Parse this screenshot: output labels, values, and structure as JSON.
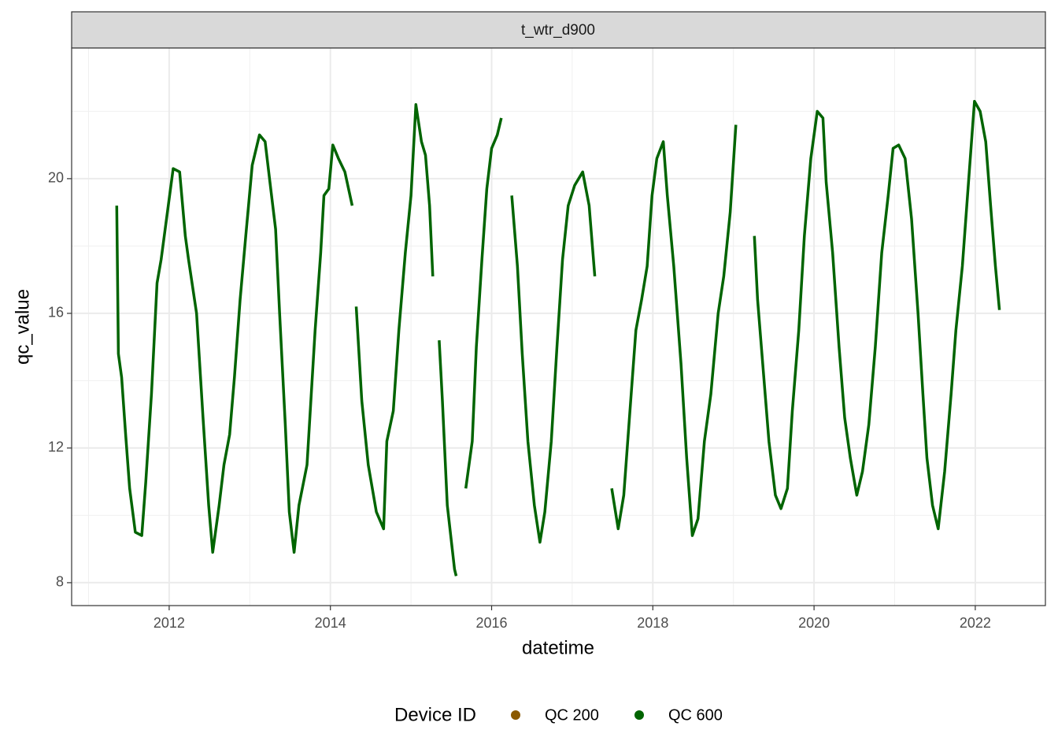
{
  "chart_data": {
    "type": "line",
    "facet": "t_wtr_d900",
    "x_label": "datetime",
    "y_label": "qc_value",
    "xlim": [
      2010.79,
      2022.87
    ],
    "ylim": [
      7.32,
      23.88
    ],
    "xticks": [
      2012,
      2014,
      2016,
      2018,
      2020,
      2022
    ],
    "yticks": [
      8,
      12,
      16,
      20
    ],
    "minor_xticks": [
      2011,
      2013,
      2015,
      2017,
      2019,
      2021
    ],
    "minor_yticks": [
      10,
      14,
      18,
      22
    ],
    "grid": true,
    "legend_position": "bottom",
    "legend_title": "Device ID",
    "series": [
      {
        "name": "QC 200",
        "color": "#8b5a00",
        "x": [],
        "values": []
      },
      {
        "name": "QC 600",
        "color": "#006400",
        "x": [
          2011.35,
          2011.37,
          2011.41,
          2011.46,
          2011.51,
          2011.58,
          2011.66,
          2011.71,
          2011.78,
          2011.85,
          2011.9,
          2011.95,
          2012.05,
          2012.13,
          2012.2,
          2012.24,
          2012.34,
          2012.42,
          2012.49,
          2012.54,
          2012.62,
          2012.68,
          2012.75,
          2012.81,
          2012.88,
          2012.95,
          2013.03,
          2013.12,
          2013.19,
          2013.25,
          2013.32,
          2013.37,
          2013.44,
          2013.49,
          2013.55,
          2013.61,
          2013.71,
          2013.81,
          2013.88,
          2013.92,
          2013.98,
          2014.03,
          2014.1,
          2014.18,
          2014.27,
          null,
          2014.32,
          2014.39,
          2014.47,
          2014.57,
          2014.66,
          2014.7,
          2014.78,
          2014.85,
          2014.93,
          2015.0,
          2015.06,
          2015.13,
          2015.18,
          2015.23,
          2015.27,
          null,
          2015.35,
          2015.39,
          2015.45,
          2015.54,
          2015.56,
          null,
          2015.68,
          2015.76,
          2015.81,
          2015.88,
          2015.94,
          2016.0,
          2016.07,
          2016.12,
          null,
          2016.25,
          2016.32,
          2016.38,
          2016.45,
          2016.53,
          2016.6,
          2016.66,
          2016.74,
          2016.81,
          2016.88,
          2016.95,
          2017.03,
          2017.13,
          2017.21,
          2017.28,
          null,
          2017.49,
          2017.57,
          2017.64,
          2017.71,
          2017.79,
          2017.86,
          2017.93,
          2017.99,
          2018.05,
          2018.13,
          2018.18,
          2018.26,
          2018.35,
          2018.42,
          2018.49,
          2018.56,
          2018.64,
          2018.72,
          2018.81,
          2018.88,
          2018.96,
          2019.03,
          null,
          2019.26,
          2019.3,
          2019.37,
          2019.44,
          2019.52,
          2019.59,
          2019.67,
          2019.73,
          2019.81,
          2019.88,
          2019.96,
          2020.04,
          2020.11,
          2020.15,
          2020.23,
          2020.31,
          2020.38,
          2020.45,
          2020.53,
          2020.6,
          2020.68,
          2020.76,
          2020.84,
          2020.92,
          2020.98,
          2021.05,
          2021.13,
          2021.21,
          2021.29,
          2021.35,
          2021.4,
          2021.47,
          2021.54,
          2021.62,
          2021.7,
          2021.76,
          2021.84,
          2021.91,
          2021.99,
          2022.06,
          2022.13,
          2022.19,
          2022.25,
          2022.3
        ],
        "values": [
          19.2,
          14.8,
          14.1,
          12.4,
          10.8,
          9.5,
          9.4,
          11.0,
          13.6,
          16.9,
          17.6,
          18.5,
          20.3,
          20.2,
          18.3,
          17.6,
          16.0,
          12.9,
          10.3,
          8.9,
          10.3,
          11.5,
          12.4,
          14.1,
          16.4,
          18.3,
          20.4,
          21.3,
          21.1,
          19.9,
          18.5,
          16.0,
          12.7,
          10.1,
          8.9,
          10.3,
          11.5,
          15.5,
          17.8,
          19.5,
          19.7,
          21.0,
          20.6,
          20.2,
          19.2,
          null,
          16.2,
          13.4,
          11.5,
          10.1,
          9.6,
          12.2,
          13.1,
          15.5,
          17.8,
          19.5,
          22.2,
          21.1,
          20.7,
          19.2,
          17.1,
          null,
          15.2,
          13.4,
          10.3,
          8.4,
          8.2,
          null,
          10.8,
          12.2,
          15.0,
          17.6,
          19.7,
          20.9,
          21.3,
          21.8,
          null,
          19.5,
          17.4,
          14.8,
          12.2,
          10.3,
          9.2,
          10.1,
          12.2,
          15.0,
          17.6,
          19.2,
          19.8,
          20.2,
          19.2,
          17.1,
          null,
          10.8,
          9.6,
          10.6,
          12.9,
          15.5,
          16.4,
          17.4,
          19.5,
          20.6,
          21.1,
          19.5,
          17.4,
          14.5,
          11.7,
          9.4,
          9.9,
          12.2,
          13.6,
          16.0,
          17.1,
          19.0,
          21.6,
          null,
          18.3,
          16.4,
          14.3,
          12.2,
          10.6,
          10.2,
          10.8,
          13.1,
          15.5,
          18.3,
          20.6,
          22.0,
          21.8,
          19.9,
          17.8,
          15.0,
          12.9,
          11.7,
          10.6,
          11.3,
          12.7,
          15.0,
          17.8,
          19.5,
          20.9,
          21.0,
          20.6,
          18.8,
          16.0,
          13.6,
          11.7,
          10.3,
          9.6,
          11.3,
          13.6,
          15.5,
          17.4,
          19.7,
          22.3,
          22.0,
          21.1,
          19.2,
          17.4,
          16.1
        ]
      }
    ]
  }
}
